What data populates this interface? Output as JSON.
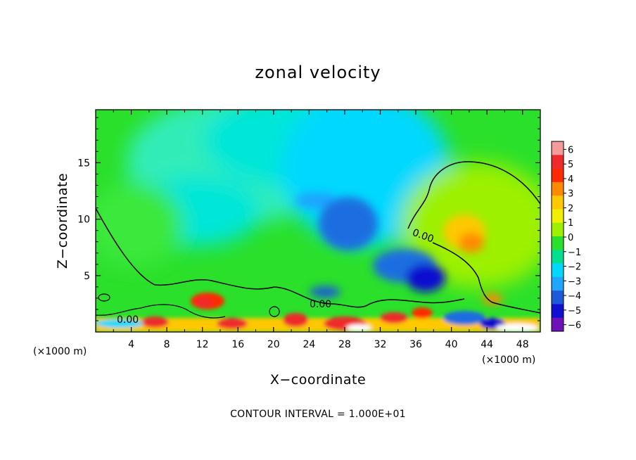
{
  "chart_data": {
    "type": "heatmap",
    "title": "zonal velocity",
    "xlabel": "X−coordinate",
    "ylabel": "Z−coordinate",
    "x_unit": "(×1000 m)",
    "y_unit": "(×1000 m)",
    "x_ticks": [
      4,
      8,
      12,
      16,
      20,
      24,
      28,
      32,
      36,
      40,
      44,
      48
    ],
    "y_ticks": [
      5,
      10,
      15
    ],
    "xlim": [
      0,
      50
    ],
    "ylim": [
      0,
      19.7
    ],
    "colorbar": {
      "ticks": [
        "6",
        "5",
        "4",
        "3",
        "2",
        "1",
        "0",
        "−1",
        "−2",
        "−3",
        "−4",
        "−5",
        "−6"
      ],
      "range": [
        -6,
        6
      ],
      "colors": [
        "#f49a9a",
        "#ee2a2a",
        "#ff2a00",
        "#ff8a00",
        "#ffc800",
        "#f0f000",
        "#9cf000",
        "#2ae02a",
        "#00e090",
        "#00d8ff",
        "#1fa6ff",
        "#1f5ad8",
        "#1010d0",
        "#7010b8"
      ]
    },
    "contour_labels": [
      "0.00",
      "0.00",
      "0.00"
    ],
    "footer": "CONTOUR INTERVAL = 1.000E+01"
  }
}
